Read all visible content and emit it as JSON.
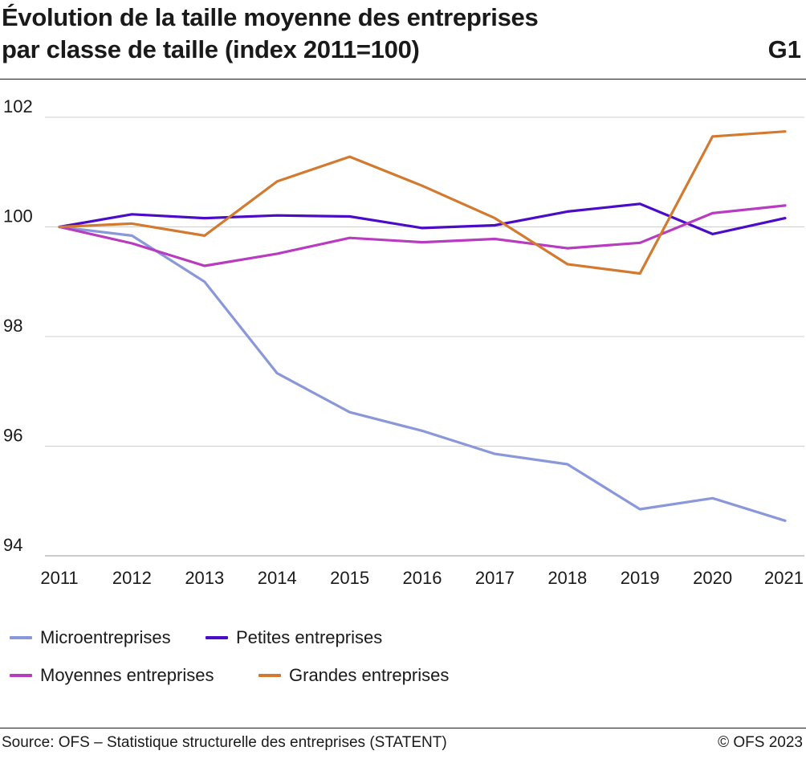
{
  "header": {
    "title_line1": "Évolution de la taille moyenne des entreprises",
    "title_line2": "par classe de taille (index 2011=100)",
    "code": "G1"
  },
  "footer": {
    "source": "Source: OFS – Statistique structurelle des entreprises (STATENT)",
    "copyright": "© OFS 2023"
  },
  "chart_data": {
    "type": "line",
    "title": "Évolution de la taille moyenne des entreprises par classe de taille (index 2011=100)",
    "x": [
      "2011",
      "2012",
      "2013",
      "2014",
      "2015",
      "2016",
      "2017",
      "2018",
      "2019",
      "2020",
      "2021"
    ],
    "ylim": [
      94,
      102
    ],
    "yticks": [
      "94",
      "96",
      "98",
      "100",
      "102"
    ],
    "grid": true,
    "legend_position": "bottom",
    "series": [
      {
        "name": "Microentreprises",
        "color": "#8a98da",
        "values": [
          100,
          99.84,
          99.0,
          97.33,
          96.62,
          96.28,
          95.86,
          95.67,
          94.85,
          95.05,
          94.64
        ]
      },
      {
        "name": "Petites entreprises",
        "color": "#4b0cc7",
        "values": [
          100,
          100.23,
          100.16,
          100.21,
          100.19,
          99.98,
          100.03,
          100.28,
          100.42,
          99.87,
          100.16
        ]
      },
      {
        "name": "Moyennes entreprises",
        "color": "#b83cc0",
        "values": [
          100,
          99.7,
          99.29,
          99.51,
          99.8,
          99.72,
          99.78,
          99.61,
          99.71,
          100.25,
          100.39
        ]
      },
      {
        "name": "Grandes entreprises",
        "color": "#d27a30",
        "values": [
          100,
          100.06,
          99.84,
          100.83,
          101.28,
          100.75,
          100.16,
          99.32,
          99.15,
          101.65,
          101.74
        ]
      }
    ]
  }
}
